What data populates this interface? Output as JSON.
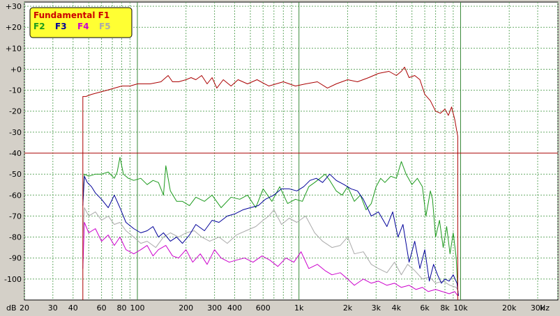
{
  "chart_data": {
    "type": "line",
    "x_scale": "log",
    "xlim": [
      20,
      40000
    ],
    "ylim": [
      -110,
      32
    ],
    "grid": true,
    "legend_position": "top-left",
    "x_tick_labels": [
      {
        "v": 20,
        "t": "20"
      },
      {
        "v": 30,
        "t": "30"
      },
      {
        "v": 40,
        "t": "40"
      },
      {
        "v": 60,
        "t": "60"
      },
      {
        "v": 80,
        "t": "80"
      },
      {
        "v": 100,
        "t": "100"
      },
      {
        "v": 200,
        "t": "200"
      },
      {
        "v": 300,
        "t": "300"
      },
      {
        "v": 400,
        "t": "400"
      },
      {
        "v": 600,
        "t": "600"
      },
      {
        "v": 1000,
        "t": "1k"
      },
      {
        "v": 2000,
        "t": "2k"
      },
      {
        "v": 3000,
        "t": "3k"
      },
      {
        "v": 4000,
        "t": "4k"
      },
      {
        "v": 6000,
        "t": "6k"
      },
      {
        "v": 8000,
        "t": "8k"
      },
      {
        "v": 10000,
        "t": "10k"
      },
      {
        "v": 20000,
        "t": "20k"
      },
      {
        "v": 30000,
        "t": "30k"
      }
    ],
    "x_unit": "Hz",
    "y_ticks": [
      30,
      20,
      10,
      0,
      -10,
      -20,
      -30,
      -40,
      -50,
      -60,
      -70,
      -80,
      -90,
      -100
    ],
    "y_tick_labels": [
      "+30",
      "+20",
      "+10",
      "+0",
      "-10",
      "-20",
      "-30",
      "-40",
      "-50",
      "-60",
      "-70",
      "-80",
      "-90",
      "-100"
    ],
    "y_unit": "dB",
    "reference_line_y": -40,
    "legend": {
      "title": "Fundamental F1",
      "items": [
        {
          "name": "F2",
          "color": "#1c9a1c"
        },
        {
          "name": "F3",
          "color": "#000099"
        },
        {
          "name": "F4",
          "color": "#cc00cc"
        },
        {
          "name": "F5",
          "color": "#aaaaaa"
        }
      ],
      "title_color": "#cc0000",
      "background": "#ffff33"
    },
    "series": [
      {
        "name": "Fundamental F1",
        "color": "#aa0000",
        "x": [
          46,
          46,
          48,
          52,
          58,
          65,
          72,
          80,
          90,
          100,
          120,
          140,
          155,
          165,
          180,
          200,
          215,
          230,
          250,
          270,
          290,
          310,
          340,
          380,
          420,
          480,
          550,
          650,
          800,
          950,
          1100,
          1300,
          1500,
          1700,
          2000,
          2300,
          2700,
          3100,
          3600,
          4000,
          4300,
          4500,
          4800,
          5200,
          5600,
          6000,
          6500,
          7000,
          7500,
          8000,
          8400,
          8800,
          9200,
          9500,
          9600,
          9600
        ],
        "y": [
          -110,
          -13,
          -13,
          -12,
          -11,
          -10,
          -9,
          -8,
          -8,
          -7,
          -7,
          -6,
          -3,
          -6,
          -6,
          -5,
          -4,
          -5,
          -3,
          -7,
          -4,
          -9,
          -5,
          -8,
          -5,
          -7,
          -5,
          -8,
          -6,
          -8,
          -7,
          -6,
          -9,
          -7,
          -5,
          -6,
          -4,
          -2,
          -1,
          -3,
          -1,
          1,
          -4,
          -3,
          -5,
          -12,
          -15,
          -20,
          -21,
          -19,
          -22,
          -18,
          -24,
          -30,
          -32,
          -110
        ]
      },
      {
        "name": "F2",
        "color": "#1c9a1c",
        "x": [
          46,
          47,
          50,
          55,
          60,
          66,
          72,
          75,
          78,
          82,
          88,
          95,
          105,
          115,
          125,
          135,
          145,
          150,
          160,
          175,
          190,
          210,
          230,
          260,
          290,
          330,
          380,
          430,
          480,
          540,
          600,
          680,
          760,
          850,
          950,
          1050,
          1150,
          1250,
          1350,
          1450,
          1550,
          1700,
          1850,
          2000,
          2200,
          2400,
          2600,
          2800,
          3000,
          3200,
          3400,
          3700,
          4000,
          4300,
          4600,
          5000,
          5400,
          5800,
          6100,
          6300,
          6500,
          6700,
          7000,
          7400,
          7800,
          8200,
          8600,
          9000,
          9400,
          9600
        ],
        "y": [
          -62,
          -50,
          -51,
          -50,
          -50,
          -49,
          -52,
          -49,
          -42,
          -50,
          -52,
          -53,
          -52,
          -55,
          -53,
          -54,
          -60,
          -46,
          -58,
          -63,
          -63,
          -65,
          -61,
          -63,
          -60,
          -66,
          -61,
          -62,
          -60,
          -66,
          -57,
          -63,
          -56,
          -64,
          -62,
          -63,
          -56,
          -54,
          -52,
          -50,
          -53,
          -58,
          -60,
          -56,
          -63,
          -60,
          -67,
          -64,
          -56,
          -52,
          -54,
          -51,
          -52,
          -44,
          -50,
          -55,
          -52,
          -56,
          -70,
          -64,
          -58,
          -62,
          -80,
          -72,
          -85,
          -75,
          -88,
          -78,
          -90,
          -105
        ]
      },
      {
        "name": "F3",
        "color": "#000099",
        "x": [
          46,
          47,
          49,
          52,
          55,
          60,
          66,
          72,
          78,
          85,
          95,
          105,
          115,
          125,
          135,
          145,
          160,
          175,
          190,
          210,
          230,
          260,
          290,
          320,
          360,
          400,
          450,
          500,
          560,
          620,
          700,
          780,
          870,
          970,
          1070,
          1170,
          1280,
          1400,
          1550,
          1700,
          1900,
          2100,
          2300,
          2500,
          2800,
          3100,
          3500,
          3800,
          4100,
          4400,
          4800,
          5200,
          5600,
          6000,
          6400,
          6800,
          7200,
          7600,
          8000,
          8500,
          9000,
          9500,
          9700
        ],
        "y": [
          -65,
          -51,
          -54,
          -56,
          -59,
          -62,
          -66,
          -60,
          -66,
          -73,
          -76,
          -78,
          -77,
          -75,
          -80,
          -78,
          -82,
          -80,
          -83,
          -79,
          -74,
          -77,
          -72,
          -73,
          -70,
          -69,
          -67,
          -66,
          -65,
          -62,
          -60,
          -57,
          -57,
          -58,
          -56,
          -53,
          -52,
          -54,
          -50,
          -53,
          -55,
          -57,
          -58,
          -62,
          -70,
          -68,
          -75,
          -68,
          -80,
          -74,
          -92,
          -82,
          -95,
          -86,
          -101,
          -93,
          -98,
          -102,
          -100,
          -101,
          -98,
          -102,
          -108
        ]
      },
      {
        "name": "F4",
        "color": "#cc00cc",
        "x": [
          46,
          47,
          50,
          55,
          60,
          66,
          72,
          78,
          85,
          95,
          105,
          115,
          125,
          135,
          150,
          165,
          180,
          200,
          220,
          245,
          270,
          300,
          330,
          370,
          410,
          460,
          520,
          590,
          660,
          740,
          830,
          930,
          1030,
          1150,
          1300,
          1450,
          1600,
          1800,
          2000,
          2200,
          2500,
          2800,
          3100,
          3500,
          3900,
          4300,
          4800,
          5300,
          5800,
          6300,
          7000,
          7700,
          8500,
          9200,
          9600
        ],
        "y": [
          -95,
          -73,
          -78,
          -76,
          -82,
          -79,
          -84,
          -80,
          -86,
          -88,
          -86,
          -84,
          -89,
          -86,
          -84,
          -89,
          -90,
          -86,
          -92,
          -88,
          -93,
          -86,
          -90,
          -92,
          -91,
          -90,
          -92,
          -89,
          -91,
          -94,
          -90,
          -92,
          -87,
          -95,
          -93,
          -96,
          -98,
          -97,
          -100,
          -103,
          -100,
          -102,
          -101,
          -103,
          -102,
          -104,
          -103,
          -105,
          -104,
          -106,
          -105,
          -106,
          -107,
          -106,
          -108
        ]
      },
      {
        "name": "F5",
        "color": "#aaaaaa",
        "x": [
          46,
          47,
          50,
          55,
          60,
          66,
          72,
          78,
          85,
          95,
          105,
          115,
          130,
          145,
          160,
          180,
          200,
          225,
          250,
          280,
          320,
          360,
          410,
          470,
          540,
          600,
          650,
          700,
          780,
          870,
          970,
          1100,
          1250,
          1400,
          1600,
          1800,
          2000,
          2200,
          2500,
          2800,
          3100,
          3500,
          3900,
          4300,
          4700,
          5200,
          5800,
          6400,
          7000,
          7800,
          8600,
          9400,
          9700
        ],
        "y": [
          -80,
          -66,
          -70,
          -68,
          -72,
          -70,
          -74,
          -73,
          -77,
          -80,
          -83,
          -82,
          -85,
          -80,
          -78,
          -80,
          -78,
          -77,
          -80,
          -82,
          -80,
          -83,
          -79,
          -77,
          -75,
          -72,
          -70,
          -67,
          -74,
          -71,
          -73,
          -70,
          -78,
          -82,
          -85,
          -84,
          -80,
          -88,
          -87,
          -93,
          -95,
          -97,
          -92,
          -98,
          -93,
          -96,
          -100,
          -99,
          -102,
          -101,
          -103,
          -104,
          -106
        ]
      }
    ]
  }
}
